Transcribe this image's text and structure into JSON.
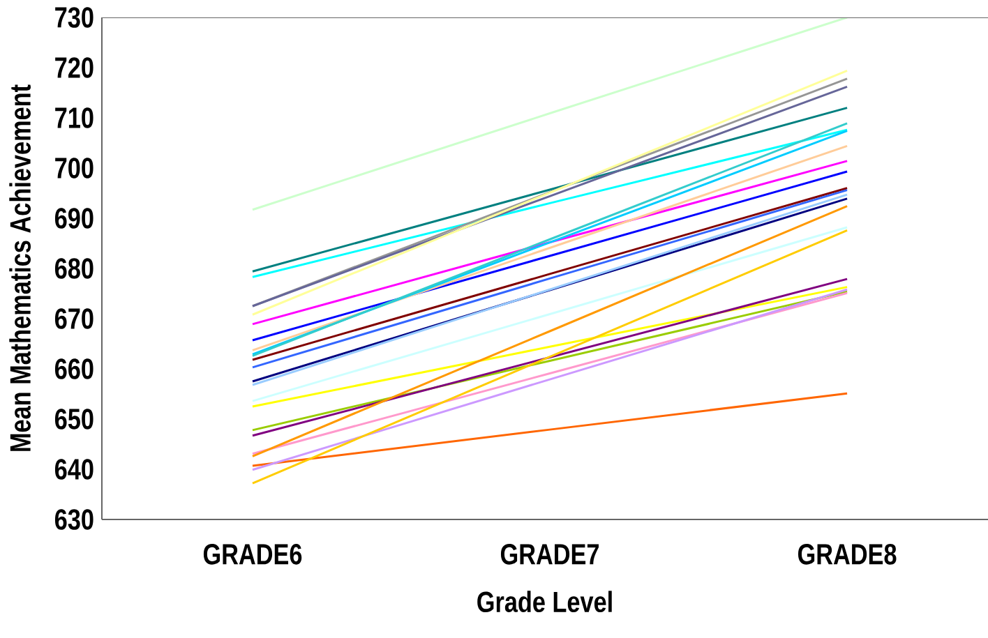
{
  "chart_data": {
    "type": "line",
    "xlabel": "Grade Level",
    "ylabel": "Mean Mathematics Achievement",
    "categories": [
      "GRADE6",
      "GRADE7",
      "GRADE8"
    ],
    "ylim": [
      630,
      730
    ],
    "yticks": [
      630,
      640,
      650,
      660,
      670,
      680,
      690,
      700,
      710,
      720,
      730
    ],
    "marker": "none",
    "line_style": "solid",
    "series": [
      {
        "color": "#ccffcc",
        "values": [
          691.7,
          710.9,
          730
        ]
      },
      {
        "color": "#008080",
        "values": [
          679.4,
          695.7,
          712.0
        ]
      },
      {
        "color": "#00ffff",
        "values": [
          678.3,
          693.0,
          707.6
        ]
      },
      {
        "color": "#969696",
        "values": [
          672.5,
          695.2,
          717.8
        ]
      },
      {
        "color": "#666699",
        "values": [
          672.5,
          694.4,
          716.2
        ]
      },
      {
        "color": "#ffff99",
        "values": [
          670.8,
          695.1,
          719.4
        ]
      },
      {
        "color": "#ff00ff",
        "values": [
          668.9,
          685.2,
          701.4
        ]
      },
      {
        "color": "#0000ff",
        "values": [
          665.7,
          682.5,
          699.3
        ]
      },
      {
        "color": "#ffcc99",
        "values": [
          663.7,
          684.1,
          704.4
        ]
      },
      {
        "color": "#00ccff",
        "values": [
          662.9,
          685.2,
          707.4
        ]
      },
      {
        "color": "#33cccc",
        "values": [
          662.6,
          685.8,
          708.9
        ]
      },
      {
        "color": "#800000",
        "values": [
          661.8,
          678.9,
          696.0
        ]
      },
      {
        "color": "#3366ff",
        "values": [
          660.3,
          678.0,
          695.6
        ]
      },
      {
        "color": "#000080",
        "values": [
          657.5,
          675.7,
          693.9
        ]
      },
      {
        "color": "#99ccff",
        "values": [
          656.8,
          675.8,
          694.7
        ]
      },
      {
        "color": "#ccffff",
        "values": [
          653.6,
          670.9,
          688.2
        ]
      },
      {
        "color": "#ffff00",
        "values": [
          652.5,
          664.4,
          676.3
        ]
      },
      {
        "color": "#99cc00",
        "values": [
          647.8,
          661.6,
          675.4
        ]
      },
      {
        "color": "#800080",
        "values": [
          646.7,
          662.3,
          677.9
        ]
      },
      {
        "color": "#ff99cc",
        "values": [
          643.1,
          659.1,
          675.1
        ]
      },
      {
        "color": "#ff9900",
        "values": [
          642.6,
          667.5,
          692.4
        ]
      },
      {
        "color": "#ff6600",
        "values": [
          640.7,
          647.9,
          655.1
        ]
      },
      {
        "color": "#cc99ff",
        "values": [
          639.9,
          657.9,
          675.8
        ]
      },
      {
        "color": "#ffcc00",
        "values": [
          637.2,
          662.4,
          687.6
        ]
      }
    ]
  }
}
